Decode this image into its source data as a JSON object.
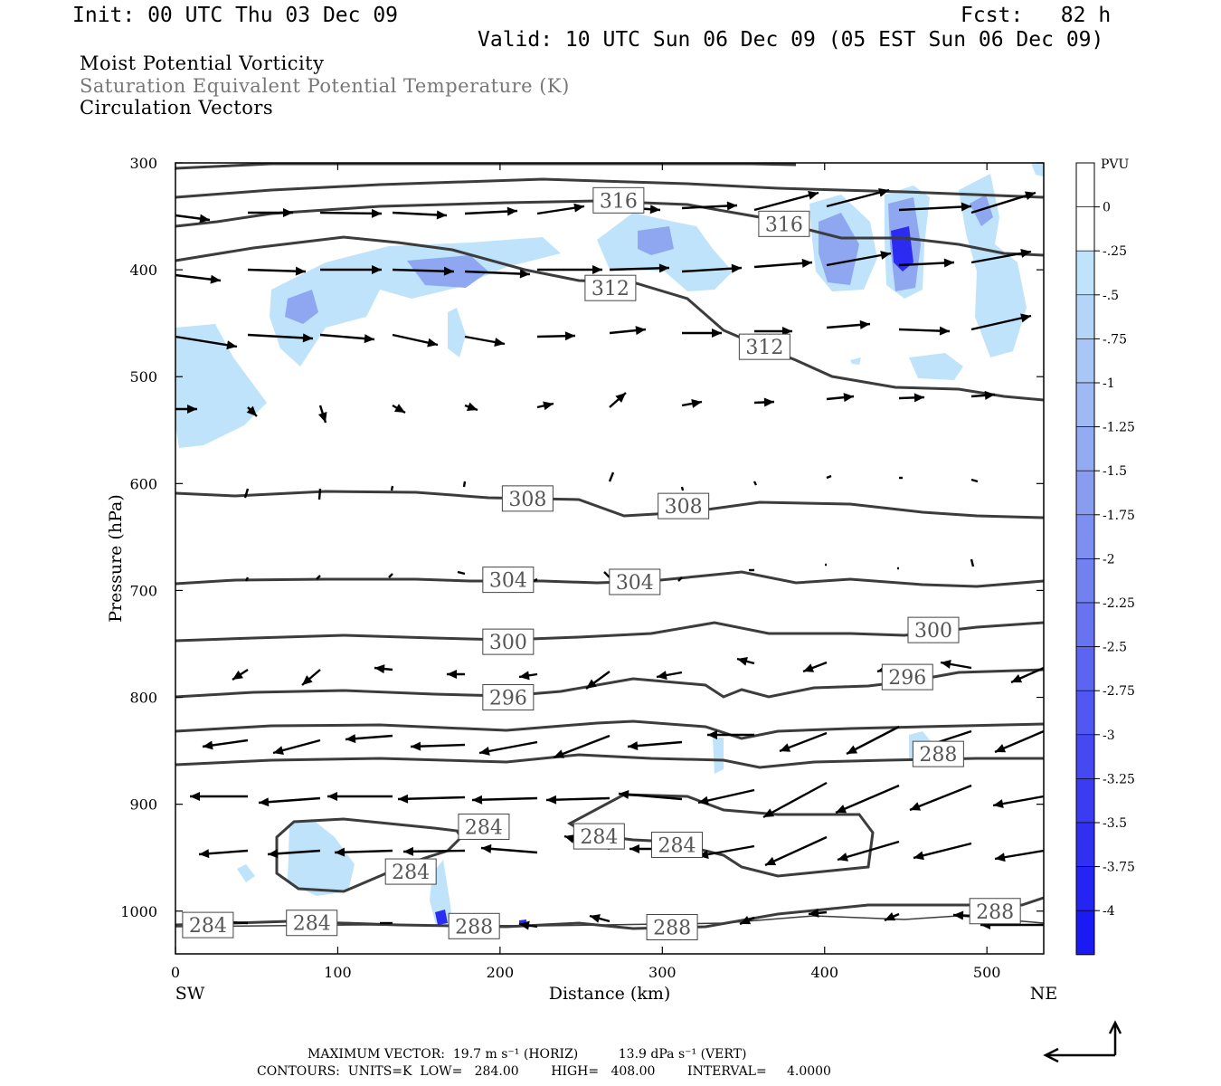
{
  "header": {
    "init": "Init: 00 UTC Thu 03 Dec 09",
    "fcst": "Fcst:   82 h",
    "valid": "Valid: 10 UTC Sun 06 Dec 09 (05 EST Sun 06 Dec 09)"
  },
  "titles": {
    "line1": "Moist Potential Vorticity",
    "line2": "Saturation Equivalent Potential Temperature (K)",
    "line3": "Circulation Vectors"
  },
  "footer": {
    "max_vector": "MAXIMUM VECTOR:  19.7 m s⁻¹ (HORIZ)          13.9 dPa s⁻¹ (VERT)",
    "contours": "CONTOURS:  UNITS=K  LOW=   284.00        HIGH=   408.00        INTERVAL=     4.0000"
  },
  "colors": {
    "contour": "#3c3c3c",
    "pv_fill_light": "#bfe3fa",
    "pv_fill_mid": "#8fa6f0",
    "pv_fill_dark": "#2b2bf2"
  },
  "chart_data": {
    "type": "heatmap",
    "xlabel": "Distance (km)",
    "ylabel": "Pressure (hPa)",
    "x_ticks": [
      0,
      100,
      200,
      300,
      400,
      500
    ],
    "y_ticks": [
      300,
      400,
      500,
      600,
      700,
      800,
      900,
      1000
    ],
    "xlim": [
      0,
      535
    ],
    "ylim": [
      1040,
      300
    ],
    "x_end_labels": {
      "left": "SW",
      "right": "NE"
    },
    "colorbar": {
      "unit": "PVU",
      "labels": [
        "0",
        "-.25",
        "-.5",
        "-.75",
        "-1",
        "-1.25",
        "-1.5",
        "-1.75",
        "-2",
        "-2.25",
        "-2.5",
        "-2.75",
        "-3",
        "-3.25",
        "-3.5",
        "-3.75",
        "-4"
      ],
      "colors": [
        "#ffffff",
        "#ffffff",
        "#bfe3fa",
        "#b4d5f8",
        "#a9c7f6",
        "#9eb9f4",
        "#93abf2",
        "#889df0",
        "#7d8ff0",
        "#7281f0",
        "#6773f1",
        "#5c65f1",
        "#5157f2",
        "#4649f2",
        "#3b3bf2",
        "#3030f3",
        "#2525f3",
        "#1a1af4"
      ]
    },
    "contour_labels": [
      {
        "text": "316",
        "x": 273,
        "p": 335
      },
      {
        "text": "316",
        "x": 375,
        "p": 357
      },
      {
        "text": "312",
        "x": 268,
        "p": 417
      },
      {
        "text": "312",
        "x": 363,
        "p": 472
      },
      {
        "text": "308",
        "x": 217,
        "p": 614
      },
      {
        "text": "308",
        "x": 313,
        "p": 621
      },
      {
        "text": "304",
        "x": 205,
        "p": 690
      },
      {
        "text": "304",
        "x": 283,
        "p": 692
      },
      {
        "text": "300",
        "x": 205,
        "p": 748
      },
      {
        "text": "300",
        "x": 467,
        "p": 737
      },
      {
        "text": "296",
        "x": 205,
        "p": 800
      },
      {
        "text": "296",
        "x": 451,
        "p": 781
      },
      {
        "text": "288",
        "x": 470,
        "p": 853
      },
      {
        "text": "284",
        "x": 190,
        "p": 921
      },
      {
        "text": "284",
        "x": 261,
        "p": 930
      },
      {
        "text": "284",
        "x": 309,
        "p": 938
      },
      {
        "text": "284",
        "x": 145,
        "p": 963
      },
      {
        "text": "284",
        "x": 20,
        "p": 1013
      },
      {
        "text": "284",
        "x": 84,
        "p": 1011
      },
      {
        "text": "288",
        "x": 184,
        "p": 1014
      },
      {
        "text": "288",
        "x": 306,
        "p": 1015
      },
      {
        "text": "288",
        "x": 505,
        "p": 1000
      }
    ]
  }
}
